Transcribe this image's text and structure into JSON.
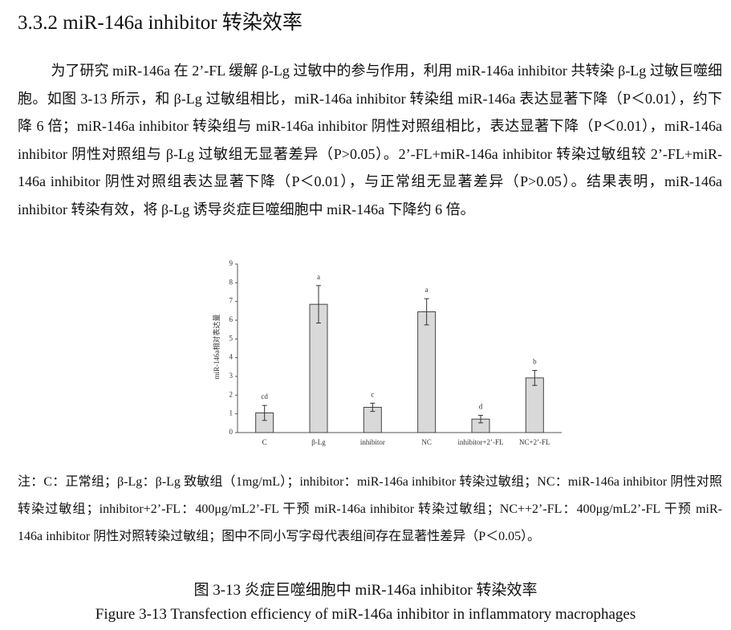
{
  "header": {
    "title": "3.3.2 miR-146a inhibitor 转染效率"
  },
  "body": {
    "paragraph": "为了研究 miR-146a 在 2’-FL 缓解 β-Lg 过敏中的参与作用，利用 miR-146a inhibitor 共转染 β-Lg 过敏巨噬细胞。如图 3-13 所示，和 β-Lg 过敏组相比，miR-146a inhibitor 转染组 miR-146a 表达显著下降（P＜0.01），约下降 6 倍；miR-146a inhibitor 转染组与 miR-146a inhibitor 阴性对照组相比，表达显著下降（P＜0.01），miR-146a inhibitor 阴性对照组与 β-Lg 过敏组无显著差异（P>0.05）。2’-FL+miR-146a inhibitor 转染过敏组较 2’-FL+miR-146a inhibitor 阴性对照组表达显著下降（P＜0.01），与正常组无显著差异（P>0.05）。结果表明，miR-146a inhibitor 转染有效，将 β-Lg 诱导炎症巨噬细胞中 miR-146a 下降约 6 倍。"
  },
  "chart_data": {
    "type": "bar",
    "y_label": "miR-146a相对表达量",
    "categories": [
      "C",
      "β-Lg",
      "inhibitor",
      "NC",
      "inhibitor+2’-FL",
      "NC+2’-FL"
    ],
    "values": [
      1.05,
      6.85,
      1.35,
      6.45,
      0.72,
      2.92
    ],
    "errors": [
      0.4,
      1.0,
      0.22,
      0.7,
      0.2,
      0.4
    ],
    "annotations": [
      "cd",
      "a",
      "c",
      "a",
      "d",
      "b"
    ],
    "color": "#d9d9d9",
    "ylim": [
      0,
      9
    ],
    "yticks": [
      0,
      1,
      2,
      3,
      4,
      5,
      6,
      7,
      8,
      9
    ]
  },
  "notes": "注：C：正常组；β-Lg：β-Lg 致敏组（1mg/mL）；inhibitor：miR-146a inhibitor 转染过敏组；NC：miR-146a inhibitor 阴性对照转染过敏组；inhibitor+2’-FL：400μg/mL2’-FL 干预 miR-146a inhibitor 转染过敏组；NC++2’-FL：400μg/mL2’-FL 干预 miR-146a inhibitor 阴性对照转染过敏组；图中不同小写字母代表组间存在显著性差异（P＜0.05）。",
  "caption": {
    "cn": "图 3-13  炎症巨噬细胞中 miR-146a inhibitor 转染效率",
    "en": "Figure 3-13 Transfection efficiency of miR-146a inhibitor in inflammatory macrophages"
  }
}
